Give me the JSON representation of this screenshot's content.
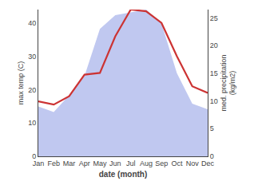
{
  "chart_data": {
    "type": "line",
    "x_label": "date (month)",
    "y_label": "max temp (C)",
    "y2_label": "med. precipitation\n(kg/m2)",
    "categories": [
      "Jan",
      "Feb",
      "Mar",
      "Apr",
      "May",
      "Jun",
      "Jul",
      "Aug",
      "Sep",
      "Oct",
      "Nov",
      "Dec"
    ],
    "series": [
      {
        "type": "area",
        "axis": "y2",
        "color": "#c0c8f0",
        "values": [
          9.0,
          8.0,
          11.0,
          14.5,
          23.0,
          25.5,
          26.0,
          26.5,
          24.0,
          15.0,
          9.5,
          8.5
        ]
      },
      {
        "type": "line",
        "color": "#cc3333",
        "values": [
          16.5,
          15.5,
          18.0,
          24.5,
          25.0,
          36.0,
          44.0,
          43.5,
          40.0,
          30.0,
          21.0,
          19.0
        ]
      }
    ],
    "ylim": [
      0,
      44
    ],
    "yticks": [
      0,
      10,
      20,
      30,
      40
    ],
    "y2lim": [
      0,
      26.5
    ],
    "y2ticks": [
      0,
      5,
      10,
      15,
      20,
      25
    ],
    "grid": false
  }
}
